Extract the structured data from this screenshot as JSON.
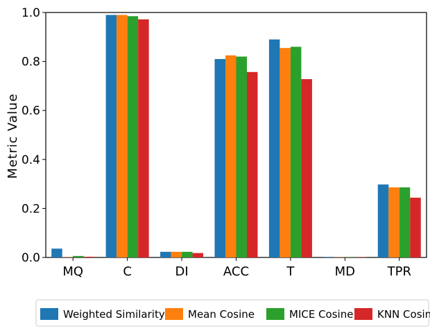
{
  "chart_data": {
    "type": "bar",
    "title": "",
    "xlabel": "",
    "ylabel": "Metric Value",
    "ylim": [
      0,
      1.0
    ],
    "yticks": [
      "0.0",
      "0.2",
      "0.4",
      "0.6",
      "0.8",
      "1.0"
    ],
    "categories": [
      "MQ",
      "C",
      "DI",
      "ACC",
      "T",
      "MD",
      "TPR"
    ],
    "series": [
      {
        "name": "Weighted Similarity",
        "color": "#1f77b4",
        "values": [
          0.036,
          0.99,
          0.023,
          0.81,
          0.89,
          0.002,
          0.298
        ]
      },
      {
        "name": "Mean Cosine",
        "color": "#ff7f0e",
        "values": [
          0.001,
          0.99,
          0.023,
          0.825,
          0.855,
          0.001,
          0.286
        ]
      },
      {
        "name": "MICE Cosine",
        "color": "#2ca02c",
        "values": [
          0.006,
          0.985,
          0.023,
          0.82,
          0.86,
          0.001,
          0.286
        ]
      },
      {
        "name": "KNN Cosine",
        "color": "#d62728",
        "values": [
          0.003,
          0.972,
          0.018,
          0.757,
          0.728,
          0.001,
          0.244
        ]
      }
    ],
    "grid": false,
    "legend_position": "bottom"
  }
}
